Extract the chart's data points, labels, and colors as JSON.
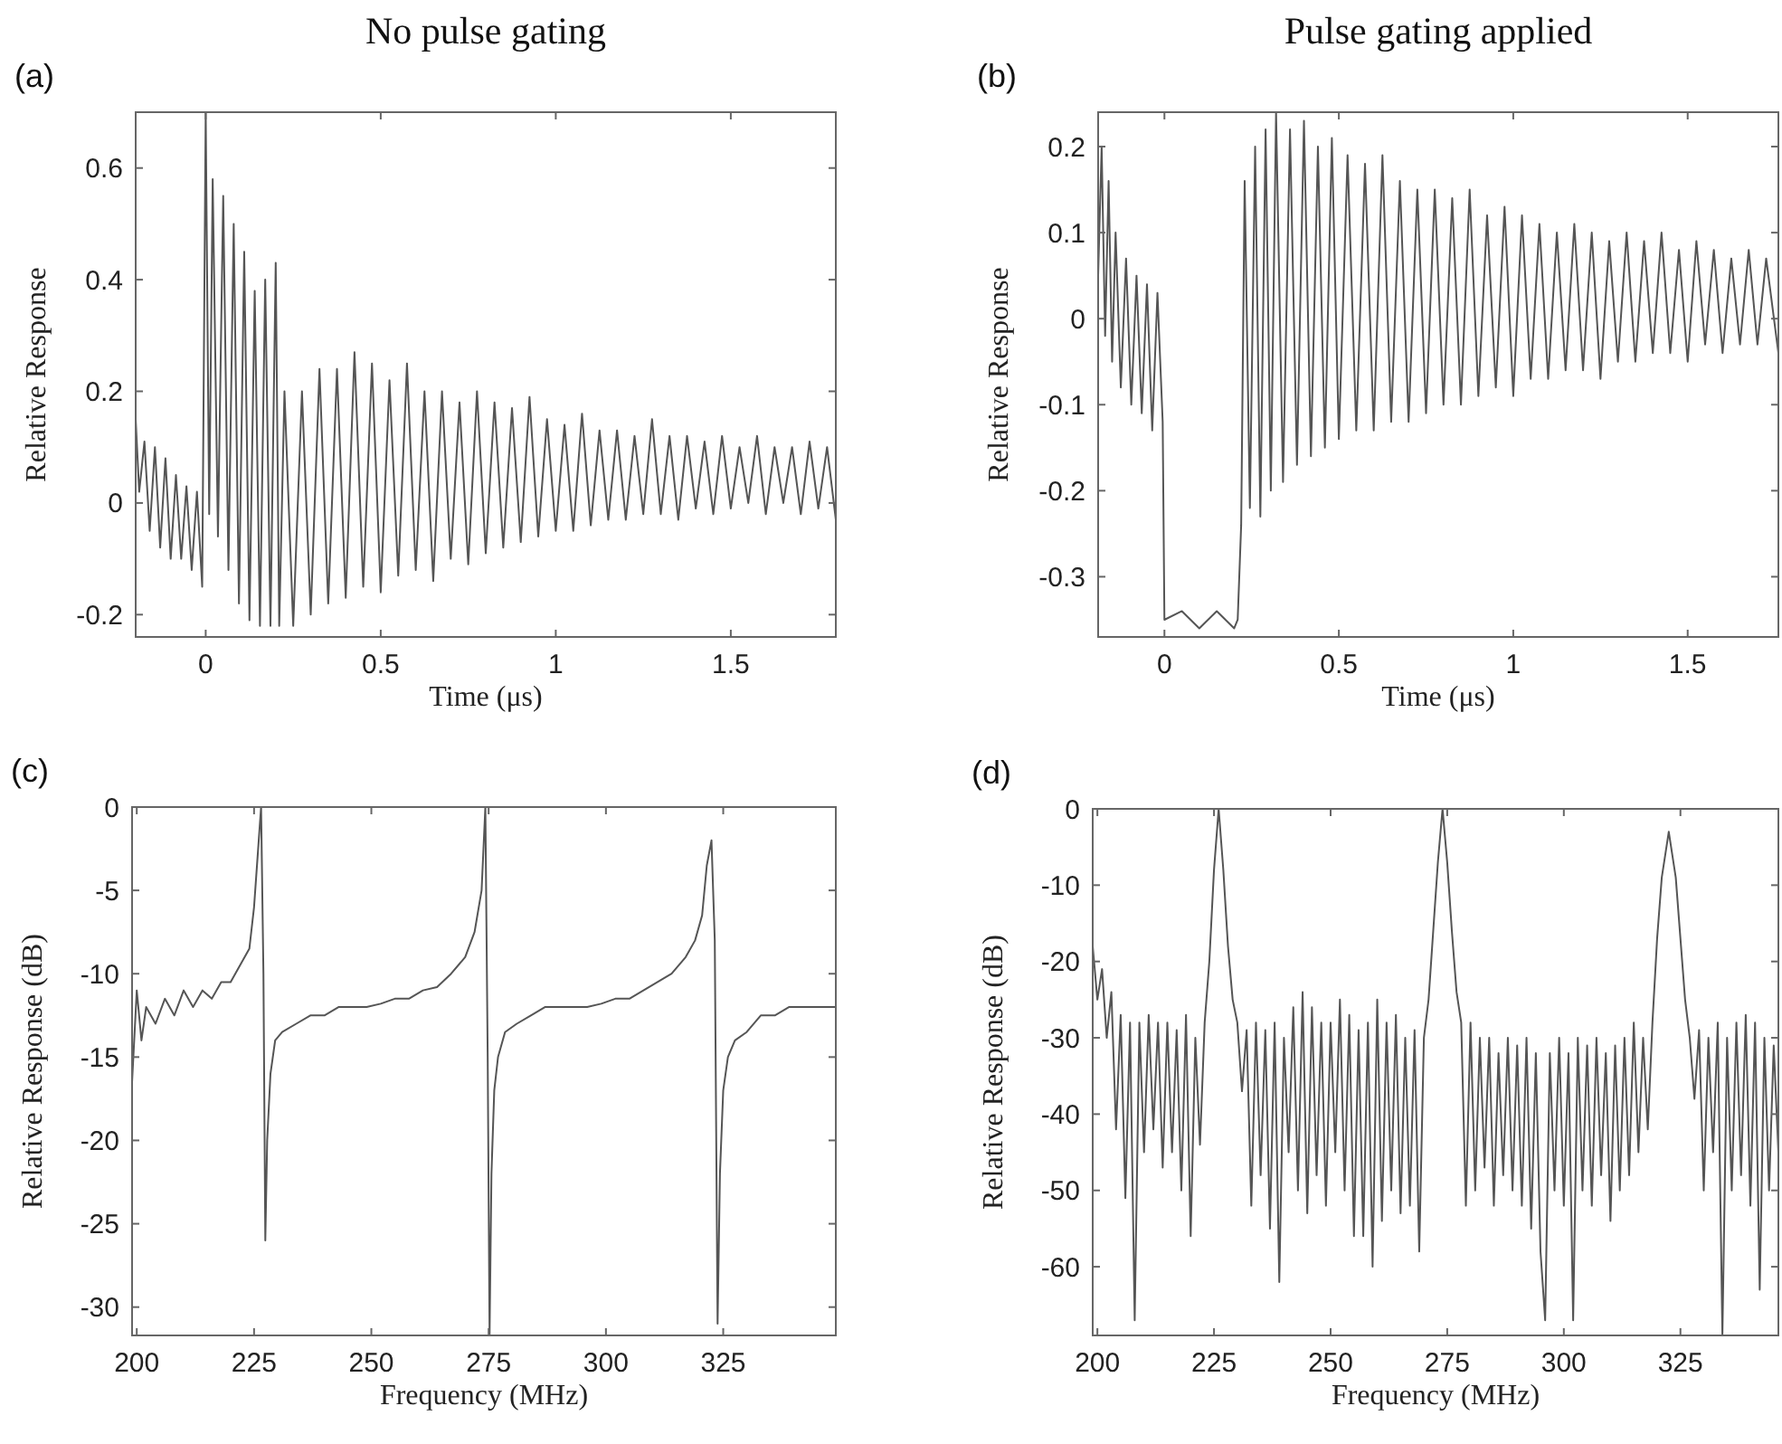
{
  "chart_data": [
    {
      "type": "line",
      "title": "No pulse gating",
      "xlabel": "Time (μs)",
      "ylabel": "Relative Response",
      "annotations": [
        "(a)"
      ],
      "xlim": [
        -0.2,
        1.8
      ],
      "ylim": [
        -0.24,
        0.7
      ],
      "xticks": [
        0,
        0.5,
        1,
        1.5
      ],
      "yticks": [
        -0.2,
        0,
        0.2,
        0.4,
        0.6
      ],
      "grid": false,
      "series": [
        {
          "color": "#555555",
          "x": [
            -0.2,
            -0.19,
            -0.175,
            -0.16,
            -0.145,
            -0.13,
            -0.115,
            -0.1,
            -0.085,
            -0.07,
            -0.055,
            -0.04,
            -0.025,
            -0.01,
            0,
            0.01,
            0.02,
            0.035,
            0.05,
            0.065,
            0.08,
            0.095,
            0.11,
            0.125,
            0.14,
            0.155,
            0.17,
            0.185,
            0.2,
            0.21,
            0.225,
            0.25,
            0.275,
            0.3,
            0.325,
            0.35,
            0.375,
            0.4,
            0.425,
            0.45,
            0.475,
            0.5,
            0.525,
            0.55,
            0.575,
            0.6,
            0.625,
            0.65,
            0.675,
            0.7,
            0.725,
            0.75,
            0.775,
            0.8,
            0.825,
            0.85,
            0.875,
            0.9,
            0.925,
            0.95,
            0.975,
            1.0,
            1.025,
            1.05,
            1.075,
            1.1,
            1.125,
            1.15,
            1.175,
            1.2,
            1.225,
            1.25,
            1.275,
            1.3,
            1.325,
            1.35,
            1.375,
            1.4,
            1.425,
            1.45,
            1.475,
            1.5,
            1.525,
            1.55,
            1.575,
            1.6,
            1.625,
            1.65,
            1.675,
            1.7,
            1.725,
            1.75,
            1.775,
            1.8
          ],
          "values": [
            0.15,
            0.02,
            0.11,
            -0.05,
            0.1,
            -0.08,
            0.08,
            -0.1,
            0.05,
            -0.1,
            0.03,
            -0.12,
            0.02,
            -0.15,
            0.7,
            -0.02,
            0.58,
            -0.06,
            0.55,
            -0.12,
            0.5,
            -0.18,
            0.45,
            -0.21,
            0.38,
            -0.22,
            0.4,
            -0.22,
            0.43,
            -0.22,
            0.2,
            -0.22,
            0.2,
            -0.2,
            0.24,
            -0.18,
            0.24,
            -0.17,
            0.27,
            -0.15,
            0.25,
            -0.16,
            0.22,
            -0.13,
            0.25,
            -0.12,
            0.2,
            -0.14,
            0.2,
            -0.1,
            0.18,
            -0.11,
            0.2,
            -0.09,
            0.18,
            -0.08,
            0.17,
            -0.07,
            0.19,
            -0.06,
            0.15,
            -0.05,
            0.14,
            -0.05,
            0.16,
            -0.04,
            0.13,
            -0.03,
            0.13,
            -0.03,
            0.12,
            -0.02,
            0.15,
            -0.02,
            0.12,
            -0.03,
            0.12,
            -0.01,
            0.11,
            -0.02,
            0.12,
            -0.01,
            0.1,
            0.0,
            0.12,
            -0.02,
            0.1,
            0.0,
            0.1,
            -0.02,
            0.11,
            -0.01,
            0.1,
            -0.03
          ]
        }
      ]
    },
    {
      "type": "line",
      "title": "Pulse gating applied",
      "xlabel": "Time (μs)",
      "ylabel": "Relative Response",
      "annotations": [
        "(b)"
      ],
      "xlim": [
        -0.19,
        1.76
      ],
      "ylim": [
        -0.37,
        0.24
      ],
      "xticks": [
        0,
        0.5,
        1,
        1.5
      ],
      "yticks": [
        -0.3,
        -0.2,
        -0.1,
        0,
        0.1,
        0.2
      ],
      "grid": false,
      "series": [
        {
          "color": "#555555",
          "x": [
            -0.19,
            -0.18,
            -0.17,
            -0.16,
            -0.15,
            -0.14,
            -0.125,
            -0.11,
            -0.095,
            -0.08,
            -0.065,
            -0.05,
            -0.035,
            -0.02,
            -0.005,
            0.0,
            0.05,
            0.1,
            0.15,
            0.2,
            0.21,
            0.22,
            0.23,
            0.245,
            0.26,
            0.275,
            0.29,
            0.305,
            0.32,
            0.34,
            0.36,
            0.38,
            0.4,
            0.42,
            0.44,
            0.46,
            0.48,
            0.5,
            0.525,
            0.55,
            0.575,
            0.6,
            0.625,
            0.65,
            0.675,
            0.7,
            0.725,
            0.75,
            0.775,
            0.8,
            0.825,
            0.85,
            0.875,
            0.9,
            0.925,
            0.95,
            0.975,
            1.0,
            1.025,
            1.05,
            1.075,
            1.1,
            1.125,
            1.15,
            1.175,
            1.2,
            1.225,
            1.25,
            1.275,
            1.3,
            1.325,
            1.35,
            1.375,
            1.4,
            1.425,
            1.45,
            1.475,
            1.5,
            1.525,
            1.55,
            1.575,
            1.6,
            1.625,
            1.65,
            1.675,
            1.7,
            1.725,
            1.76
          ],
          "values": [
            0.05,
            0.2,
            -0.02,
            0.16,
            -0.05,
            0.1,
            -0.08,
            0.07,
            -0.1,
            0.05,
            -0.11,
            0.04,
            -0.13,
            0.03,
            -0.12,
            -0.35,
            -0.34,
            -0.36,
            -0.34,
            -0.36,
            -0.35,
            -0.24,
            0.16,
            -0.22,
            0.2,
            -0.23,
            0.22,
            -0.2,
            0.24,
            -0.19,
            0.22,
            -0.17,
            0.23,
            -0.16,
            0.2,
            -0.15,
            0.21,
            -0.14,
            0.19,
            -0.13,
            0.18,
            -0.13,
            0.19,
            -0.12,
            0.16,
            -0.12,
            0.15,
            -0.11,
            0.15,
            -0.1,
            0.14,
            -0.1,
            0.15,
            -0.09,
            0.12,
            -0.08,
            0.13,
            -0.09,
            0.12,
            -0.07,
            0.11,
            -0.07,
            0.1,
            -0.06,
            0.11,
            -0.06,
            0.1,
            -0.07,
            0.09,
            -0.05,
            0.1,
            -0.05,
            0.09,
            -0.04,
            0.1,
            -0.04,
            0.08,
            -0.05,
            0.09,
            -0.03,
            0.08,
            -0.04,
            0.07,
            -0.03,
            0.08,
            -0.03,
            0.07,
            -0.04
          ]
        }
      ]
    },
    {
      "type": "line",
      "xlabel": "Frequency (MHz)",
      "ylabel": "Relative Response (dB)",
      "annotations": [
        "(c)"
      ],
      "xlim": [
        199,
        349
      ],
      "ylim": [
        -31.7,
        0
      ],
      "xticks": [
        200,
        225,
        250,
        275,
        300,
        325
      ],
      "yticks": [
        -30,
        -25,
        -20,
        -15,
        -10,
        -5,
        0
      ],
      "grid": false,
      "series": [
        {
          "color": "#555555",
          "x": [
            199,
            200,
            201,
            202,
            204,
            206,
            208,
            210,
            212,
            214,
            216,
            218,
            220,
            222,
            224,
            225,
            226,
            226.5,
            227,
            227.4,
            227.8,
            228.5,
            229.5,
            231,
            234,
            237,
            240,
            243,
            246,
            249,
            252,
            255,
            258,
            261,
            264,
            267,
            270,
            272,
            273.5,
            274.3,
            274.8,
            275.2,
            275.6,
            276.2,
            277,
            278.5,
            281,
            284,
            287,
            290,
            293,
            296,
            299,
            302,
            305,
            308,
            311,
            314,
            317,
            319,
            320.5,
            321.5,
            322.5,
            323.2,
            323.8,
            324.3,
            325,
            326,
            327.5,
            330,
            333,
            336,
            339,
            342,
            345,
            349
          ],
          "values": [
            -16.5,
            -11,
            -14,
            -12,
            -13,
            -11.5,
            -12.5,
            -11,
            -12,
            -11,
            -11.5,
            -10.5,
            -10.5,
            -9.5,
            -8.5,
            -6,
            -2,
            0,
            -10,
            -26,
            -20,
            -16,
            -14,
            -13.5,
            -13,
            -12.5,
            -12.5,
            -12,
            -12,
            -12,
            -11.8,
            -11.5,
            -11.5,
            -11,
            -10.8,
            -10,
            -9,
            -7.5,
            -5,
            0,
            -15,
            -31.7,
            -22,
            -17,
            -15,
            -13.5,
            -13,
            -12.5,
            -12,
            -12,
            -12,
            -12,
            -11.8,
            -11.5,
            -11.5,
            -11,
            -10.5,
            -10,
            -9,
            -8,
            -6.5,
            -3.5,
            -2,
            -8,
            -31,
            -22,
            -17,
            -15,
            -14,
            -13.5,
            -12.5,
            -12.5,
            -12,
            -12,
            -12,
            -12
          ]
        }
      ]
    },
    {
      "type": "line",
      "xlabel": "Frequency (MHz)",
      "ylabel": "Relative Response (dB)",
      "annotations": [
        "(d)"
      ],
      "xlim": [
        199,
        346
      ],
      "ylim": [
        -69,
        0
      ],
      "xticks": [
        200,
        225,
        250,
        275,
        300,
        325
      ],
      "yticks": [
        -60,
        -50,
        -40,
        -30,
        -20,
        -10,
        0
      ],
      "grid": false,
      "series": [
        {
          "color": "#555555",
          "x": [
            199,
            200,
            201,
            202,
            203,
            204,
            205,
            206,
            207,
            208,
            209,
            210,
            211,
            212,
            213,
            214,
            215,
            216,
            217,
            218,
            219,
            220,
            221,
            222,
            223,
            224,
            225,
            226,
            227,
            228,
            229,
            230,
            231,
            232,
            233,
            234,
            235,
            236,
            237,
            238,
            239,
            240,
            241,
            242,
            243,
            244,
            245,
            246,
            247,
            248,
            249,
            250,
            251,
            252,
            253,
            254,
            255,
            256,
            257,
            258,
            259,
            260,
            261,
            262,
            263,
            264,
            265,
            266,
            267,
            268,
            269,
            270,
            271,
            272,
            273,
            274,
            275,
            276,
            277,
            278,
            279,
            280,
            281,
            282,
            283,
            284,
            285,
            286,
            287,
            288,
            289,
            290,
            291,
            292,
            293,
            294,
            295,
            296,
            297,
            298,
            299,
            300,
            301,
            302,
            303,
            304,
            305,
            306,
            307,
            308,
            309,
            310,
            311,
            312,
            313,
            314,
            315,
            316,
            317,
            318,
            319,
            320,
            321,
            322.5,
            324,
            325,
            326,
            327,
            328,
            329,
            330,
            331,
            332,
            333,
            334,
            335,
            336,
            337,
            338,
            339,
            340,
            341,
            342,
            343,
            344,
            345,
            346
          ],
          "values": [
            -18,
            -25,
            -21,
            -30,
            -24,
            -42,
            -27,
            -51,
            -28,
            -67,
            -28,
            -45,
            -27,
            -42,
            -28,
            -47,
            -28,
            -45,
            -29,
            -50,
            -27,
            -56,
            -30,
            -44,
            -28,
            -20,
            -8,
            0,
            -8,
            -18,
            -25,
            -28,
            -37,
            -29,
            -52,
            -28,
            -48,
            -29,
            -55,
            -28,
            -62,
            -30,
            -45,
            -26,
            -50,
            -24,
            -53,
            -26,
            -48,
            -28,
            -52,
            -28,
            -45,
            -25,
            -50,
            -27,
            -56,
            -29,
            -56,
            -28,
            -60,
            -25,
            -54,
            -28,
            -50,
            -27,
            -53,
            -30,
            -52,
            -29,
            -58,
            -30,
            -25,
            -16,
            -7,
            0,
            -7,
            -16,
            -24,
            -28,
            -52,
            -28,
            -50,
            -30,
            -47,
            -30,
            -52,
            -32,
            -48,
            -30,
            -50,
            -31,
            -52,
            -30,
            -55,
            -32,
            -58,
            -67,
            -32,
            -50,
            -30,
            -52,
            -32,
            -67,
            -30,
            -50,
            -31,
            -52,
            -30,
            -48,
            -32,
            -54,
            -31,
            -50,
            -30,
            -48,
            -28,
            -45,
            -30,
            -42,
            -28,
            -17,
            -9,
            -3,
            -9,
            -17,
            -25,
            -30,
            -38,
            -29,
            -50,
            -30,
            -45,
            -28,
            -69,
            -30,
            -50,
            -28,
            -48,
            -27,
            -52,
            -28,
            -63,
            -30,
            -50,
            -31,
            -45
          ]
        }
      ]
    }
  ]
}
